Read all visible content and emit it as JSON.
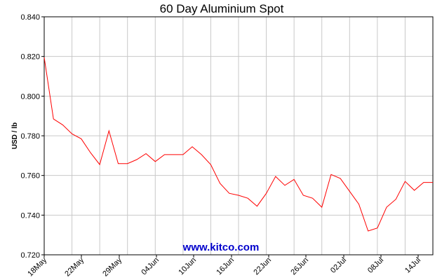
{
  "chart_data": {
    "type": "line",
    "title": "60 Day Aluminium Spot",
    "ylabel": "USD / lb",
    "xlabel": "",
    "ylim": [
      0.72,
      0.84
    ],
    "yticks": [
      "0.720",
      "0.740",
      "0.760",
      "0.780",
      "0.800",
      "0.820",
      "0.840"
    ],
    "xticks": [
      "18May",
      "22May",
      "29May",
      "04Jun",
      "10Jun",
      "16Jun",
      "22Jun",
      "26Jun",
      "02Jul",
      "08Jul",
      "14Jul"
    ],
    "grid": true,
    "colors": {
      "series": "#ff0000",
      "grid": "#c8c8c8",
      "axis": "#000000",
      "watermark": "#0000cc"
    },
    "series": [
      {
        "values": [
          0.8195,
          0.7885,
          0.7855,
          0.781,
          0.7785,
          0.7715,
          0.7655,
          0.7825,
          0.766,
          0.766,
          0.768,
          0.771,
          0.767,
          0.7705,
          0.7705,
          0.7705,
          0.7745,
          0.7705,
          0.7655,
          0.756,
          0.751,
          0.75,
          0.7485,
          0.7445,
          0.751,
          0.7595,
          0.755,
          0.758,
          0.75,
          0.7485,
          0.744,
          0.7605,
          0.7585,
          0.752,
          0.7455,
          0.732,
          0.7335,
          0.744,
          0.748,
          0.757,
          0.7525,
          0.7565,
          0.7565
        ]
      }
    ]
  },
  "watermark": "www.kitco.com"
}
